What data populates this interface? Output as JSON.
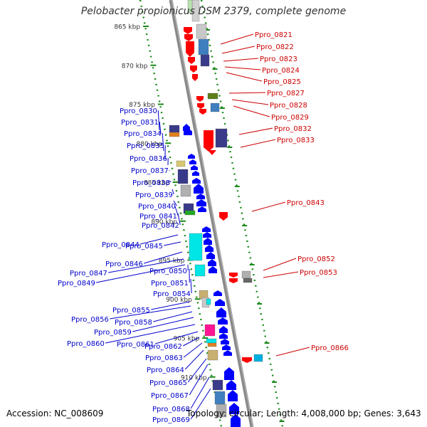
{
  "title": "Pelobacter propionicus DSM 2379, complete genome",
  "accession": "Accession: NC_008609",
  "summary": "Topology: circular; Length: 4,008,000 bp; Genes: 3,643",
  "colors": {
    "backbone": "#8a8a8a",
    "ruler": "#1a8a1a",
    "label_forward": "#cc0000",
    "label_reverse": "#0000cc",
    "gene_forward": "#ff0000",
    "gene_reverse": "#0000ff"
  },
  "ruler_labels": [
    {
      "text": "865 kbp",
      "kbp": 865
    },
    {
      "text": "870 kbp",
      "kbp": 870
    },
    {
      "text": "875 kbp",
      "kbp": 875
    },
    {
      "text": "880 kbp",
      "kbp": 880
    },
    {
      "text": "885 kbp",
      "kbp": 885
    },
    {
      "text": "890 kbp",
      "kbp": 890
    },
    {
      "text": "895 kbp",
      "kbp": 895
    },
    {
      "text": "900 kbp",
      "kbp": 900
    },
    {
      "text": "905 kbp",
      "kbp": 905
    },
    {
      "text": "910 kbp",
      "kbp": 910
    }
  ],
  "genes_forward": [
    "Ppro_0821",
    "Ppro_0822",
    "Ppro_0823",
    "Ppro_0824",
    "Ppro_0825",
    "Ppro_0827",
    "Ppro_0828",
    "Ppro_0829",
    "Ppro_0832",
    "Ppro_0833",
    "Ppro_0843",
    "Ppro_0852",
    "Ppro_0853",
    "Ppro_0866"
  ],
  "genes_reverse": [
    "Ppro_0830",
    "Ppro_0831",
    "Ppro_0834",
    "Ppro_0835",
    "Ppro_0836",
    "Ppro_0837",
    "Ppro_0838",
    "Ppro_0839",
    "Ppro_0840",
    "Ppro_0841",
    "Ppro_0842",
    "Ppro_0844",
    "Ppro_0845",
    "Ppro_0846",
    "Ppro_0847",
    "Ppro_0849",
    "Ppro_0850",
    "Ppro_0851",
    "Ppro_0854",
    "Ppro_0855",
    "Ppro_0856",
    "Ppro_0858",
    "Ppro_0859",
    "Ppro_0860",
    "Ppro_0861",
    "Ppro_0862",
    "Ppro_0863",
    "Ppro_0864",
    "Ppro_0865",
    "Ppro_0867",
    "Ppro_0868",
    "Ppro_0869"
  ]
}
